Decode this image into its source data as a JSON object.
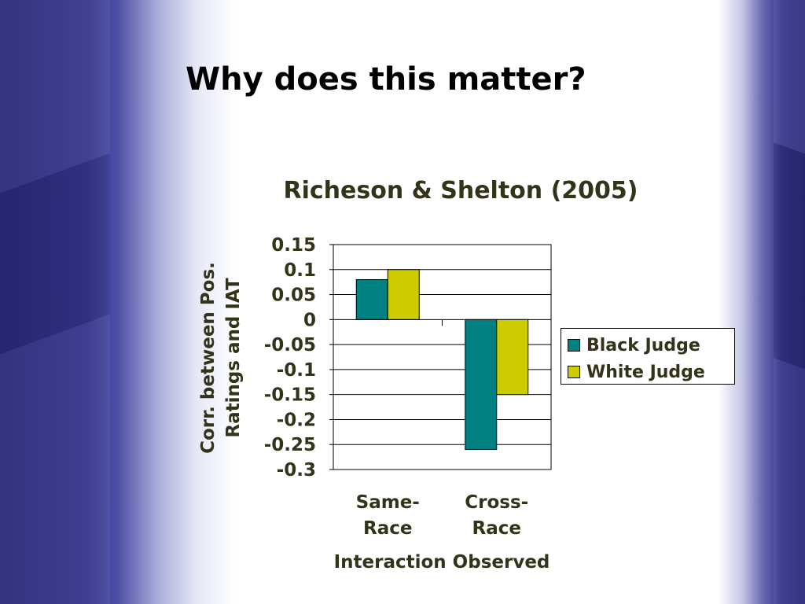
{
  "slide": {
    "title": "Why does this matter?"
  },
  "colors": {
    "black_judge": "#008080",
    "white_judge": "#cccc00",
    "text": "#33331a"
  },
  "chart_data": {
    "type": "bar",
    "title": "Richeson & Shelton (2005)",
    "xlabel": "Interaction Observed",
    "ylabel": [
      "Corr. between Pos.",
      "Ratings and IAT"
    ],
    "categories": [
      [
        "Same-",
        "Race"
      ],
      [
        "Cross-",
        "Race"
      ]
    ],
    "series": [
      {
        "name": "Black Judge",
        "values": [
          0.08,
          -0.26
        ]
      },
      {
        "name": "White Judge",
        "values": [
          0.1,
          -0.15
        ]
      }
    ],
    "ylim": [
      -0.3,
      0.15
    ],
    "yticks": [
      0.15,
      0.1,
      0.05,
      0,
      -0.05,
      -0.1,
      -0.15,
      -0.2,
      -0.25,
      -0.3
    ],
    "ytick_labels": [
      "0.15",
      "0.1",
      "0.05",
      "0",
      "-0.05",
      "-0.1",
      "-0.15",
      "-0.2",
      "-0.25",
      "-0.3"
    ],
    "grid": true,
    "legend": "right"
  }
}
